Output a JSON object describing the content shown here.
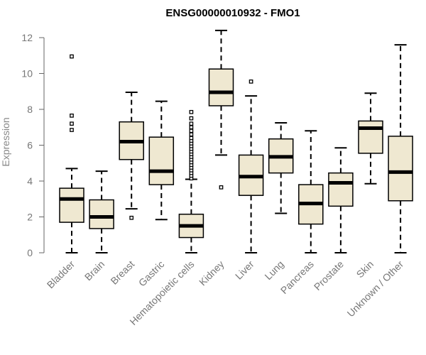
{
  "chart_data": {
    "type": "boxplot",
    "title": "ENSG00000010932 - FMO1",
    "xlabel": "",
    "ylabel": "Expression",
    "ylim": [
      0,
      12
    ],
    "yticks": [
      0,
      2,
      4,
      6,
      8,
      10,
      12
    ],
    "colors": {
      "box_fill": "#efe8d1",
      "box_stroke": "#000000",
      "axis": "#666666"
    },
    "categories": [
      "Bladder",
      "Brain",
      "Breast",
      "Gastric",
      "Hematopoietic cells",
      "Kidney",
      "Liver",
      "Lung",
      "Pancreas",
      "Prostate",
      "Skin",
      "Unknown / Other"
    ],
    "series": [
      {
        "name": "Bladder",
        "min": 0,
        "q1": 1.7,
        "median": 3.0,
        "q3": 3.6,
        "max": 4.7,
        "outliers": [
          6.85,
          7.2,
          7.65,
          10.95
        ]
      },
      {
        "name": "Brain",
        "min": 0,
        "q1": 1.35,
        "median": 2.0,
        "q3": 2.95,
        "max": 4.55,
        "outliers": []
      },
      {
        "name": "Breast",
        "min": 2.45,
        "q1": 5.2,
        "median": 6.2,
        "q3": 7.3,
        "max": 8.95,
        "outliers": [
          1.95
        ]
      },
      {
        "name": "Gastric",
        "min": 1.85,
        "q1": 3.8,
        "median": 4.55,
        "q3": 6.45,
        "max": 8.45,
        "outliers": []
      },
      {
        "name": "Hematopoietic cells",
        "min": 0,
        "q1": 0.85,
        "median": 1.5,
        "q3": 2.15,
        "max": 4.1,
        "outliers": [
          4.15,
          4.3,
          4.45,
          4.6,
          4.75,
          4.9,
          5.05,
          5.2,
          5.35,
          5.5,
          5.65,
          5.8,
          5.95,
          6.1,
          6.25,
          6.4,
          6.6,
          6.8,
          7.0,
          7.2,
          7.5,
          7.85
        ]
      },
      {
        "name": "Kidney",
        "min": 5.45,
        "q1": 8.2,
        "median": 8.95,
        "q3": 10.25,
        "max": 12.4,
        "outliers": [
          3.65
        ]
      },
      {
        "name": "Liver",
        "min": 0,
        "q1": 3.2,
        "median": 4.25,
        "q3": 5.45,
        "max": 8.75,
        "outliers": [
          9.55
        ]
      },
      {
        "name": "Lung",
        "min": 2.2,
        "q1": 4.45,
        "median": 5.35,
        "q3": 6.35,
        "max": 7.25,
        "outliers": []
      },
      {
        "name": "Pancreas",
        "min": 0,
        "q1": 1.6,
        "median": 2.75,
        "q3": 3.8,
        "max": 6.8,
        "outliers": []
      },
      {
        "name": "Prostate",
        "min": 0,
        "q1": 2.6,
        "median": 3.9,
        "q3": 4.45,
        "max": 5.85,
        "outliers": []
      },
      {
        "name": "Skin",
        "min": 3.85,
        "q1": 5.55,
        "median": 6.95,
        "q3": 7.35,
        "max": 8.9,
        "outliers": []
      },
      {
        "name": "Unknown / Other",
        "min": 0,
        "q1": 2.9,
        "median": 4.5,
        "q3": 6.5,
        "max": 11.6,
        "outliers": []
      }
    ]
  }
}
